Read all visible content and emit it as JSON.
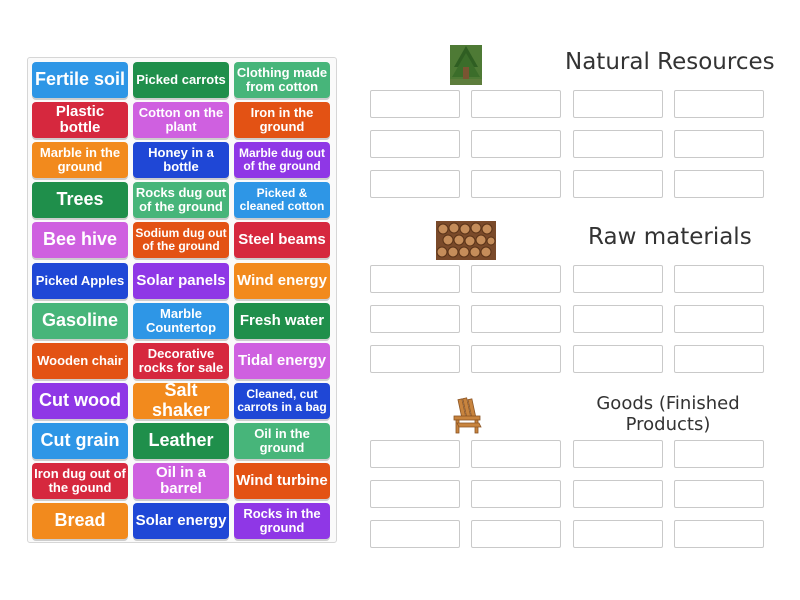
{
  "tiles": [
    {
      "label": "Fertile soil",
      "color": "#2e96e6",
      "size": "l"
    },
    {
      "label": "Picked carrots",
      "color": "#1f8f4b",
      "size": "s"
    },
    {
      "label": "Clothing made from cotton",
      "color": "#47b57a",
      "size": "s"
    },
    {
      "label": "Plastic bottle",
      "color": "#d6283e",
      "size": "m"
    },
    {
      "label": "Cotton on the plant",
      "color": "#cf60e0",
      "size": "s"
    },
    {
      "label": "Iron in the ground",
      "color": "#e35214",
      "size": "s"
    },
    {
      "label": "Marble in the ground",
      "color": "#f28a1d",
      "size": "s"
    },
    {
      "label": "Honey in a bottle",
      "color": "#1f47d6",
      "size": "s"
    },
    {
      "label": "Marble dug out of the ground",
      "color": "#8f37e6",
      "size": "xs"
    },
    {
      "label": "Trees",
      "color": "#1f8f4b",
      "size": "l"
    },
    {
      "label": "Rocks dug out of the ground",
      "color": "#47b57a",
      "size": "s"
    },
    {
      "label": "Picked & cleaned cotton",
      "color": "#2e96e6",
      "size": "xs"
    },
    {
      "label": "Bee hive",
      "color": "#cf60e0",
      "size": "l"
    },
    {
      "label": "Sodium dug out of the ground",
      "color": "#e35214",
      "size": "xs"
    },
    {
      "label": "Steel beams",
      "color": "#d6283e",
      "size": "m"
    },
    {
      "label": "Picked Apples",
      "color": "#1f47d6",
      "size": "s"
    },
    {
      "label": "Solar panels",
      "color": "#8f37e6",
      "size": "m"
    },
    {
      "label": "Wind energy",
      "color": "#f28a1d",
      "size": "m"
    },
    {
      "label": "Gasoline",
      "color": "#47b57a",
      "size": "l"
    },
    {
      "label": "Marble Countertop",
      "color": "#2e96e6",
      "size": "s"
    },
    {
      "label": "Fresh water",
      "color": "#1f8f4b",
      "size": "m"
    },
    {
      "label": "Wooden chair",
      "color": "#e35214",
      "size": "s"
    },
    {
      "label": "Decorative rocks for sale",
      "color": "#d6283e",
      "size": "s"
    },
    {
      "label": "Tidal energy",
      "color": "#cf60e0",
      "size": "m"
    },
    {
      "label": "Cut wood",
      "color": "#8f37e6",
      "size": "l"
    },
    {
      "label": "Salt shaker",
      "color": "#f28a1d",
      "size": "l"
    },
    {
      "label": "Cleaned, cut carrots in a bag",
      "color": "#1f47d6",
      "size": "xs"
    },
    {
      "label": "Cut grain",
      "color": "#2e96e6",
      "size": "l"
    },
    {
      "label": "Leather",
      "color": "#1f8f4b",
      "size": "l"
    },
    {
      "label": "Oil in the ground",
      "color": "#47b57a",
      "size": "s"
    },
    {
      "label": "Iron dug out of the gound",
      "color": "#d6283e",
      "size": "s"
    },
    {
      "label": "Oil in a barrel",
      "color": "#cf60e0",
      "size": "m"
    },
    {
      "label": "Wind turbine",
      "color": "#e35214",
      "size": "m"
    },
    {
      "label": "Bread",
      "color": "#f28a1d",
      "size": "l"
    },
    {
      "label": "Solar energy",
      "color": "#1f47d6",
      "size": "m"
    },
    {
      "label": "Rocks in the ground",
      "color": "#8f37e6",
      "size": "s"
    }
  ],
  "categories": [
    {
      "title": "Natural Resources",
      "icon": "tree-photo-icon"
    },
    {
      "title": "Raw materials",
      "icon": "log-pile-photo-icon"
    },
    {
      "title": "Goods (Finished Products)",
      "icon": "adirondack-chair-photo-icon"
    }
  ]
}
